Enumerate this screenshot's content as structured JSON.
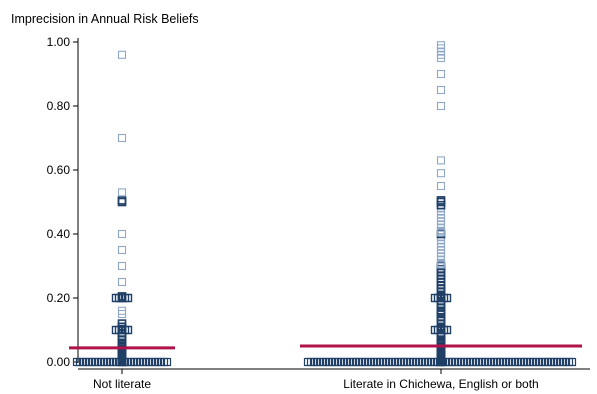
{
  "chart_data": {
    "type": "scatter",
    "title": "Imprecision in Annual Risk Beliefs",
    "xlabel": "",
    "ylabel": "",
    "ylim": [
      0,
      1
    ],
    "y_ticks": [
      "0.00",
      "0.20",
      "0.40",
      "0.60",
      "0.80",
      "1.00"
    ],
    "y_tick_values": [
      0,
      0.2,
      0.4,
      0.6,
      0.8,
      1.0
    ],
    "categories": [
      "Not literate",
      "Literate in Chichewa, English or both"
    ],
    "grid": false,
    "legend": "none",
    "colors": {
      "marker": "#1f3f66",
      "marker_light": "#8fa8c8",
      "mean_line": "#b0124a",
      "axis": "#000000"
    },
    "series": [
      {
        "category": "Not literate",
        "mean": 0.044,
        "points": [
          0,
          0.003,
          0.005,
          0.008,
          0.01,
          0.012,
          0.015,
          0.018,
          0.02,
          0.025,
          0.03,
          0.035,
          0.04,
          0.045,
          0.05,
          0.055,
          0.06,
          0.07,
          0.08,
          0.09,
          0.1,
          0.103,
          0.11,
          0.12,
          0.15,
          0.16,
          0.2,
          0.205,
          0.25,
          0.3,
          0.35,
          0.4,
          0.5,
          0.505,
          0.53,
          0.7,
          0.96
        ]
      },
      {
        "category": "Literate in Chichewa, English or both",
        "mean": 0.05,
        "points": [
          0,
          0.003,
          0.005,
          0.008,
          0.01,
          0.012,
          0.015,
          0.018,
          0.02,
          0.025,
          0.03,
          0.035,
          0.04,
          0.045,
          0.05,
          0.055,
          0.06,
          0.065,
          0.07,
          0.08,
          0.09,
          0.1,
          0.102,
          0.105,
          0.11,
          0.12,
          0.13,
          0.14,
          0.15,
          0.155,
          0.16,
          0.17,
          0.18,
          0.19,
          0.2,
          0.202,
          0.205,
          0.21,
          0.22,
          0.23,
          0.24,
          0.25,
          0.26,
          0.27,
          0.28,
          0.29,
          0.3,
          0.305,
          0.31,
          0.32,
          0.33,
          0.34,
          0.35,
          0.36,
          0.37,
          0.38,
          0.39,
          0.4,
          0.405,
          0.41,
          0.42,
          0.43,
          0.44,
          0.45,
          0.46,
          0.47,
          0.48,
          0.49,
          0.5,
          0.505,
          0.55,
          0.59,
          0.63,
          0.8,
          0.85,
          0.9,
          0.95,
          0.96,
          0.97,
          0.98,
          0.99
        ]
      }
    ]
  }
}
